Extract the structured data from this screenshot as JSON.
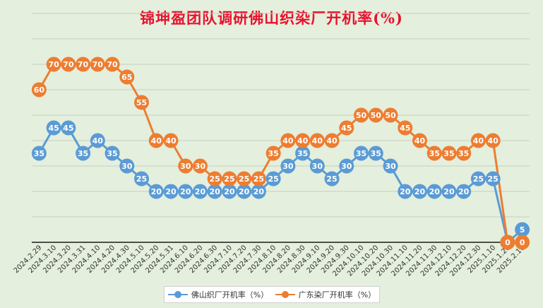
{
  "chart_data": {
    "type": "line",
    "title": "锦坤盈团队调研佛山织染厂开机率(%)",
    "categories": [
      "2024.2.29",
      "2024.3.10",
      "2024.3.20",
      "2024.3.31",
      "2024.4.10",
      "2024.4.20",
      "2024.4.30",
      "2024.5.10",
      "2024.5.20",
      "2024.5.31",
      "2024.6.10",
      "2024.6.20",
      "2024.6.30",
      "2024.7.10",
      "2024.7.20",
      "2024.7.30",
      "2024.8.10",
      "2024.8.20",
      "2024.8.30",
      "2024.9.10",
      "2024.9.20",
      "2024.9.30",
      "2024.10.10",
      "2024.10.20",
      "2024.10.30",
      "2024.11.10",
      "2024.11.20",
      "2024.11.30",
      "2024.12.10",
      "2024.12.20",
      "2024.12.30",
      "2025.1.10",
      "2025.1.20",
      "2025.2.10"
    ],
    "series": [
      {
        "name": "佛山织厂开机率（%）",
        "color": "#5b9bd5",
        "values": [
          35,
          45,
          45,
          35,
          40,
          35,
          30,
          25,
          20,
          20,
          20,
          20,
          20,
          20,
          20,
          20,
          25,
          30,
          35,
          30,
          25,
          30,
          35,
          35,
          30,
          20,
          20,
          20,
          20,
          20,
          25,
          25,
          0,
          5
        ]
      },
      {
        "name": "广东染厂开机率（%）",
        "color": "#ed7d31",
        "values": [
          60,
          70,
          70,
          70,
          70,
          70,
          65,
          55,
          40,
          40,
          30,
          30,
          25,
          25,
          25,
          25,
          35,
          40,
          40,
          40,
          40,
          45,
          50,
          50,
          50,
          45,
          40,
          35,
          35,
          35,
          40,
          40,
          0,
          0
        ]
      }
    ],
    "ylim": [
      0,
      90
    ],
    "grid": true,
    "legend_position": "bottom"
  }
}
